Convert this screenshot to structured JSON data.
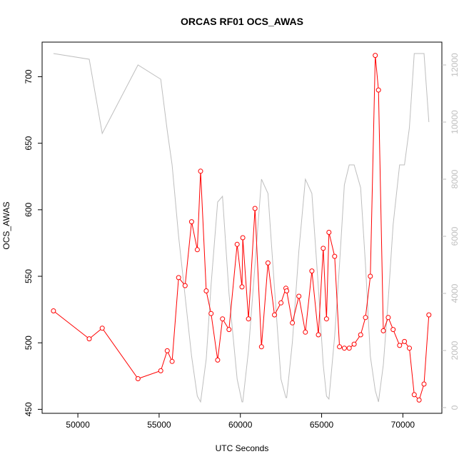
{
  "chart_data": {
    "type": "line",
    "title": "ORCAS RF01 OCS_AWAS",
    "xlabel": "UTC Seconds",
    "ylabel": "OCS_AWAS",
    "xlim": [
      47800,
      72400
    ],
    "ylim": [
      447,
      726
    ],
    "y2lim": [
      -200,
      12800
    ],
    "x_ticks": [
      50000,
      55000,
      60000,
      65000,
      70000
    ],
    "y_ticks": [
      450,
      500,
      550,
      600,
      650,
      700
    ],
    "y2_ticks": [
      0,
      2000,
      4000,
      6000,
      8000,
      10000,
      12000
    ],
    "grid": false,
    "colors": {
      "primary": "#ff0000",
      "secondary": "#bebebe"
    },
    "series": [
      {
        "role": "primary",
        "axis": "left",
        "markers": "open-circle",
        "x": [
          48500,
          50700,
          51500,
          53700,
          55100,
          55500,
          55800,
          56200,
          56600,
          57000,
          57350,
          57550,
          57900,
          58200,
          58600,
          58900,
          59300,
          59800,
          60100,
          60150,
          60500,
          60900,
          61300,
          61700,
          62100,
          62500,
          62800,
          62850,
          63200,
          63600,
          64000,
          64400,
          64800,
          65100,
          65300,
          65450,
          65800,
          66100,
          66400,
          66700,
          67000,
          67400,
          67700,
          68000,
          68300,
          68500,
          68800,
          69100,
          69400,
          69800,
          70100,
          70400,
          70700,
          71000,
          71300,
          71600
        ],
        "y": [
          524,
          503,
          511,
          473,
          479,
          494,
          486,
          549,
          543,
          591,
          570,
          629,
          539,
          522,
          487,
          518,
          510,
          574,
          542,
          579,
          518,
          601,
          497,
          560,
          521,
          530,
          541,
          539,
          515,
          535,
          508,
          554,
          506,
          571,
          518,
          583,
          565,
          497,
          496,
          496,
          499,
          506,
          519,
          550,
          716,
          690,
          509,
          519,
          510,
          498,
          501,
          496,
          461,
          457,
          469,
          521
        ]
      },
      {
        "role": "secondary",
        "axis": "right",
        "x": [
          48500,
          50700,
          51500,
          53700,
          55100,
          55500,
          55800,
          56200,
          56600,
          57000,
          57350,
          57550,
          57900,
          58200,
          58600,
          58900,
          59300,
          59800,
          60100,
          60150,
          60500,
          60900,
          61300,
          61700,
          62100,
          62500,
          62800,
          62850,
          63200,
          63600,
          64000,
          64400,
          64800,
          65100,
          65300,
          65450,
          65800,
          66100,
          66400,
          66700,
          67000,
          67400,
          67700,
          68000,
          68300,
          68500,
          68800,
          69100,
          69400,
          69800,
          70100,
          70400,
          70700,
          71000,
          71300,
          71600
        ],
        "y": [
          12400,
          12200,
          9600,
          12000,
          11500,
          9700,
          8500,
          6000,
          3900,
          1800,
          400,
          200,
          1700,
          4300,
          7200,
          7400,
          4000,
          1000,
          200,
          200,
          2000,
          5000,
          8000,
          7500,
          4200,
          1000,
          350,
          350,
          2300,
          5500,
          8000,
          7500,
          4200,
          1500,
          400,
          300,
          2500,
          5000,
          7800,
          8500,
          8500,
          7700,
          5000,
          1800,
          600,
          200,
          1500,
          3800,
          6400,
          8500,
          8500,
          9800,
          12400,
          12400,
          12400,
          10000
        ]
      }
    ]
  }
}
